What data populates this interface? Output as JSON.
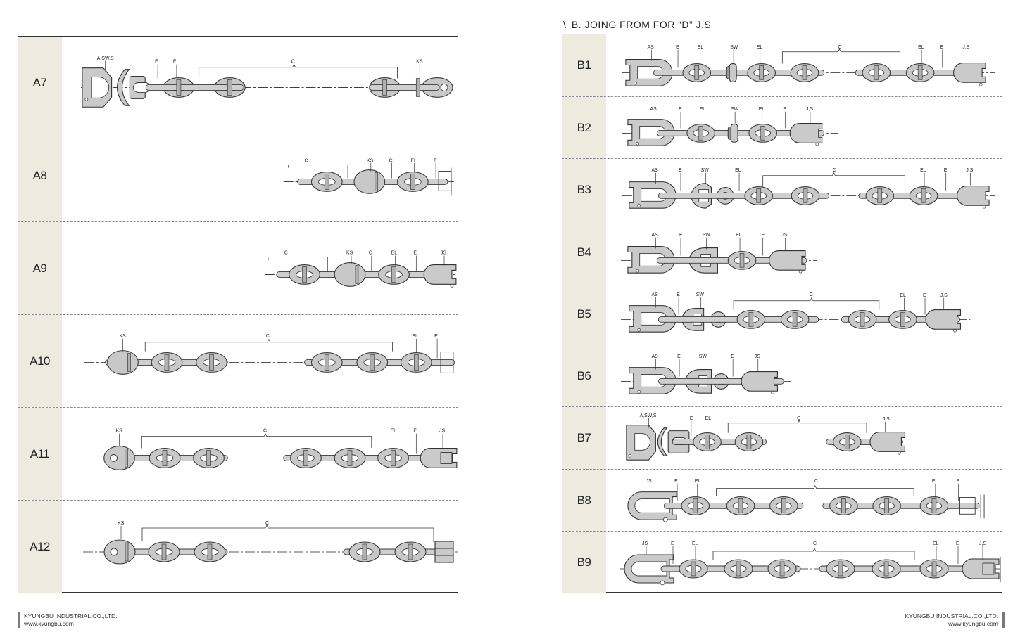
{
  "section_b": {
    "slash": "\\",
    "title": "B. JOING FROM FOR “D” J.S"
  },
  "rows_left": [
    {
      "label": "A7",
      "parts": [
        "A,SW,S",
        "E",
        "EL",
        "C",
        "KS"
      ]
    },
    {
      "label": "A8",
      "parts": [
        "C",
        "KS",
        "C",
        "EL",
        "E"
      ]
    },
    {
      "label": "A9",
      "parts": [
        "C",
        "KS",
        "C",
        "EL",
        "E",
        "JS"
      ]
    },
    {
      "label": "A10",
      "parts": [
        "KS",
        "C",
        "EL",
        "E"
      ]
    },
    {
      "label": "A11",
      "parts": [
        "KS",
        "C",
        "EL",
        "E",
        "JS"
      ]
    },
    {
      "label": "A12",
      "parts": [
        "KS",
        "C"
      ]
    }
  ],
  "rows_right": [
    {
      "label": "B1",
      "parts": [
        "AS",
        "E",
        "EL",
        "SW",
        "EL",
        "C",
        "EL",
        "E",
        "J,S"
      ]
    },
    {
      "label": "B2",
      "parts": [
        "AS",
        "E",
        "EL",
        "SW",
        "EL",
        "E",
        "J,S"
      ]
    },
    {
      "label": "B3",
      "parts": [
        "AS",
        "E",
        "SW",
        "EL",
        "C",
        "EL",
        "E",
        "J,S"
      ]
    },
    {
      "label": "B4",
      "parts": [
        "AS",
        "E",
        "SW",
        "EL",
        "E",
        "JS"
      ]
    },
    {
      "label": "B5",
      "parts": [
        "AS",
        "E",
        "SW",
        "C",
        "EL",
        "E",
        "J,S"
      ]
    },
    {
      "label": "B6",
      "parts": [
        "AS",
        "E",
        "SW",
        "E",
        "JS"
      ]
    },
    {
      "label": "B7",
      "parts": [
        "A,SW,S",
        "E",
        "EL",
        "C",
        "J,S"
      ]
    },
    {
      "label": "B8",
      "parts": [
        "JS",
        "E",
        "EL",
        "C",
        "EL",
        "E"
      ]
    },
    {
      "label": "B9",
      "parts": [
        "JS",
        "E",
        "EL",
        "C",
        "EL",
        "E",
        "J,S"
      ]
    }
  ],
  "footer": {
    "company_left": "KYUNGBU INDUSTRIAL.CO.,LTD.",
    "url_left": "www.kyungbu.com",
    "company_right": "KYUNGBU INDUSTRIAL.CO.,LTD.",
    "url_right": "www.kyungbu.com"
  }
}
